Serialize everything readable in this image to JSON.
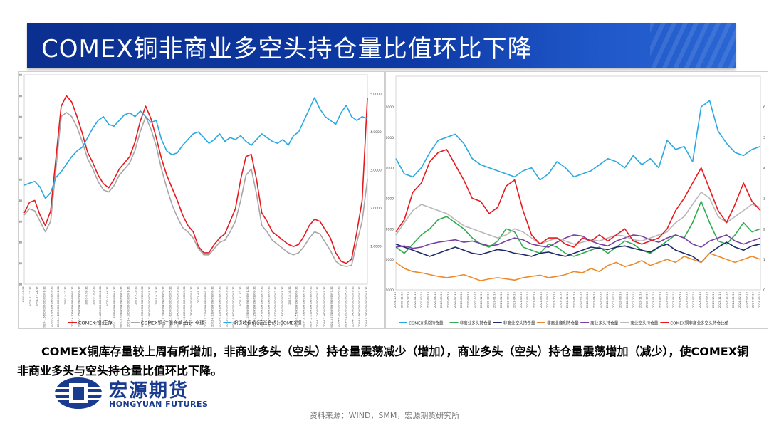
{
  "header": {
    "title": "COMEX铜非商业多空头持仓量比值环比下降"
  },
  "summary": "COMEX铜库存量较上周有所增加，非商业多头（空头）持仓量震荡减少（增加），商业多头（空头）持仓量震荡增加（减少），使COMEX铜非商业多头与空头持仓量比值环比下降。",
  "logo": {
    "cn": "宏源期货",
    "en": "HONGYUAN FUTURES"
  },
  "source": "资料来源：WIND，SMM，宏源期货研究所",
  "colors": {
    "title_bg": "#0b2f8f",
    "red": "#e8191e",
    "gray": "#a6a6a6",
    "cyan": "#28a9e1",
    "green": "#2eae4f",
    "navy": "#1f2a6b",
    "orange": "#ed8a2c",
    "purple": "#7a3fa3",
    "lightgray": "#b8b8b8"
  },
  "chart_data": [
    {
      "type": "line",
      "x_range": [
        "2019-10",
        "2024-10"
      ],
      "ylim_left": [
        0,
        100000
      ],
      "ylim_right": [
        0,
        5.5
      ],
      "y_ticks_left": [
        "0.0000",
        "10000.0000",
        "20000.0000",
        "30000.0000",
        "40000.0000",
        "50000.0000",
        "60000.0000",
        "70000.0000",
        "80000.0000",
        "90000.0000",
        "100000.0000"
      ],
      "y_ticks_right": [
        "",
        "1.0000",
        "2.0000",
        "3.0000",
        "4.0000",
        "5.0000"
      ],
      "legend_position": "bottom",
      "series": [
        {
          "name": "COMEX:铜:库存",
          "axis": "left",
          "color": "red",
          "values": [
            34000,
            39000,
            40000,
            33000,
            28000,
            35000,
            60000,
            85000,
            90000,
            87000,
            80000,
            72000,
            63000,
            58000,
            52000,
            48000,
            46000,
            50000,
            55000,
            58000,
            61000,
            68000,
            78000,
            85000,
            79000,
            70000,
            60000,
            52000,
            46000,
            40000,
            33000,
            28000,
            25000,
            18000,
            15000,
            15000,
            19000,
            22000,
            24000,
            30000,
            36000,
            50000,
            61000,
            62000,
            50000,
            34000,
            30000,
            25000,
            23000,
            21000,
            19000,
            18000,
            19000,
            23000,
            28000,
            31000,
            30000,
            26000,
            22000,
            15000,
            11000,
            10000,
            12000,
            25000,
            40000,
            89000
          ]
        },
        {
          "name": "COMEX铜:注册仓单:合计:全球",
          "axis": "left",
          "color": "gray",
          "values": [
            33000,
            36000,
            35000,
            30000,
            25000,
            30000,
            55000,
            80000,
            82000,
            80000,
            75000,
            68000,
            60000,
            55000,
            49000,
            45000,
            44000,
            47000,
            52000,
            55000,
            58000,
            64000,
            73000,
            80000,
            74000,
            66000,
            55000,
            46000,
            38000,
            32000,
            27000,
            25000,
            22000,
            17000,
            14000,
            14000,
            17000,
            20000,
            21000,
            25000,
            30000,
            40000,
            52000,
            55000,
            43000,
            28000,
            25000,
            21000,
            19000,
            17000,
            15000,
            14000,
            15000,
            18000,
            22000,
            25000,
            24000,
            20000,
            16000,
            11000,
            9000,
            8500,
            9000,
            20000,
            30000,
            50000
          ]
        },
        {
          "name": "期货收盘价(活跃合约):COMEX铜",
          "axis": "right",
          "color": "cyan",
          "values": [
            2.6,
            2.65,
            2.7,
            2.55,
            2.25,
            2.4,
            2.8,
            2.95,
            3.15,
            3.35,
            3.5,
            3.6,
            3.85,
            4.1,
            4.3,
            4.4,
            4.2,
            4.15,
            4.3,
            4.45,
            4.5,
            4.4,
            4.55,
            4.4,
            4.25,
            4.3,
            3.8,
            3.5,
            3.4,
            3.45,
            3.65,
            3.8,
            3.95,
            4.0,
            3.85,
            3.7,
            3.8,
            3.95,
            3.75,
            3.85,
            3.8,
            3.9,
            3.75,
            3.65,
            3.8,
            3.95,
            3.85,
            3.75,
            3.7,
            3.8,
            3.65,
            3.9,
            4.0,
            4.3,
            4.6,
            4.9,
            4.6,
            4.4,
            4.3,
            4.2,
            4.5,
            4.7,
            4.4,
            4.3,
            4.4,
            4.35
          ]
        }
      ]
    },
    {
      "type": "line",
      "ylim_left": [
        0,
        350000
      ],
      "ylim_right": [
        0,
        7
      ],
      "y_ticks_left": [
        "0.0000",
        "50000.0000",
        "100000.0000",
        "150000.0000",
        "200000.0000",
        "250000.0000",
        "300000.0000"
      ],
      "y_ticks_right": [
        "0",
        "1",
        "2",
        "3",
        "4",
        "5",
        "6"
      ],
      "legend_position": "bottom",
      "series": [
        {
          "name": "COMEX铜总持仓量",
          "axis": "left",
          "color": "cyan",
          "values": [
            215000,
            190000,
            185000,
            200000,
            225000,
            245000,
            250000,
            255000,
            240000,
            215000,
            205000,
            200000,
            195000,
            190000,
            185000,
            195000,
            200000,
            180000,
            190000,
            210000,
            200000,
            185000,
            190000,
            195000,
            205000,
            215000,
            210000,
            200000,
            220000,
            205000,
            215000,
            200000,
            245000,
            230000,
            235000,
            210000,
            300000,
            310000,
            260000,
            240000,
            225000,
            220000,
            230000,
            235000
          ]
        },
        {
          "name": "非商业多头持仓量",
          "axis": "left",
          "color": "green",
          "values": [
            70000,
            60000,
            75000,
            90000,
            100000,
            115000,
            120000,
            110000,
            100000,
            85000,
            75000,
            70000,
            80000,
            100000,
            95000,
            70000,
            65000,
            60000,
            75000,
            70000,
            60000,
            55000,
            60000,
            65000,
            70000,
            60000,
            70000,
            80000,
            75000,
            65000,
            60000,
            70000,
            80000,
            90000,
            85000,
            110000,
            145000,
            110000,
            80000,
            75000,
            90000,
            110000,
            95000,
            100000
          ]
        },
        {
          "name": "非商业空头持仓量",
          "axis": "left",
          "color": "navy",
          "values": [
            75000,
            70000,
            65000,
            60000,
            55000,
            60000,
            65000,
            70000,
            65000,
            60000,
            58000,
            62000,
            66000,
            64000,
            60000,
            58000,
            55000,
            60000,
            62000,
            58000,
            55000,
            60000,
            65000,
            70000,
            68000,
            66000,
            70000,
            72000,
            68000,
            65000,
            62000,
            70000,
            75000,
            65000,
            60000,
            55000,
            45000,
            60000,
            70000,
            78000,
            70000,
            65000,
            72000,
            75000
          ]
        },
        {
          "name": "非商业套利持仓量",
          "axis": "left",
          "color": "orange",
          "values": [
            45000,
            35000,
            30000,
            28000,
            25000,
            22000,
            20000,
            22000,
            25000,
            20000,
            15000,
            18000,
            20000,
            18000,
            16000,
            20000,
            22000,
            24000,
            20000,
            22000,
            25000,
            30000,
            28000,
            35000,
            30000,
            40000,
            45000,
            38000,
            42000,
            48000,
            40000,
            45000,
            50000,
            45000,
            55000,
            50000,
            45000,
            60000,
            55000,
            50000,
            45000,
            50000,
            55000,
            50000
          ]
        },
        {
          "name": "商业多头持仓量",
          "axis": "left",
          "color": "purple",
          "values": [
            70000,
            72000,
            68000,
            70000,
            75000,
            78000,
            80000,
            82000,
            78000,
            80000,
            76000,
            72000,
            74000,
            80000,
            85000,
            82000,
            75000,
            72000,
            70000,
            78000,
            85000,
            90000,
            88000,
            80000,
            75000,
            72000,
            80000,
            85000,
            90000,
            88000,
            82000,
            78000,
            85000,
            90000,
            85000,
            75000,
            70000,
            80000,
            85000,
            90000,
            80000,
            75000,
            80000,
            85000
          ]
        },
        {
          "name": "商业空头持仓量",
          "axis": "left",
          "color": "lightgray",
          "values": [
            90000,
            110000,
            130000,
            140000,
            135000,
            130000,
            125000,
            115000,
            105000,
            100000,
            95000,
            90000,
            85000,
            90000,
            100000,
            95000,
            85000,
            75000,
            80000,
            85000,
            80000,
            75000,
            78000,
            82000,
            80000,
            85000,
            90000,
            88000,
            82000,
            80000,
            85000,
            90000,
            95000,
            110000,
            120000,
            140000,
            160000,
            150000,
            120000,
            110000,
            120000,
            130000,
            140000,
            135000
          ]
        },
        {
          "name": "COMEX铜非商业多空头持仓比值",
          "axis": "right",
          "color": "red",
          "values": [
            1.9,
            2.3,
            3.2,
            3.5,
            4.2,
            4.5,
            4.6,
            4.1,
            3.6,
            3.0,
            2.9,
            2.5,
            2.7,
            3.4,
            3.6,
            2.6,
            1.8,
            1.5,
            1.7,
            1.7,
            1.5,
            1.4,
            1.7,
            1.6,
            1.8,
            1.6,
            1.8,
            2.0,
            1.6,
            1.5,
            1.6,
            1.7,
            2.0,
            2.6,
            3.0,
            3.5,
            4.0,
            3.3,
            2.6,
            2.2,
            2.8,
            3.5,
            2.9,
            2.6
          ]
        }
      ]
    }
  ]
}
